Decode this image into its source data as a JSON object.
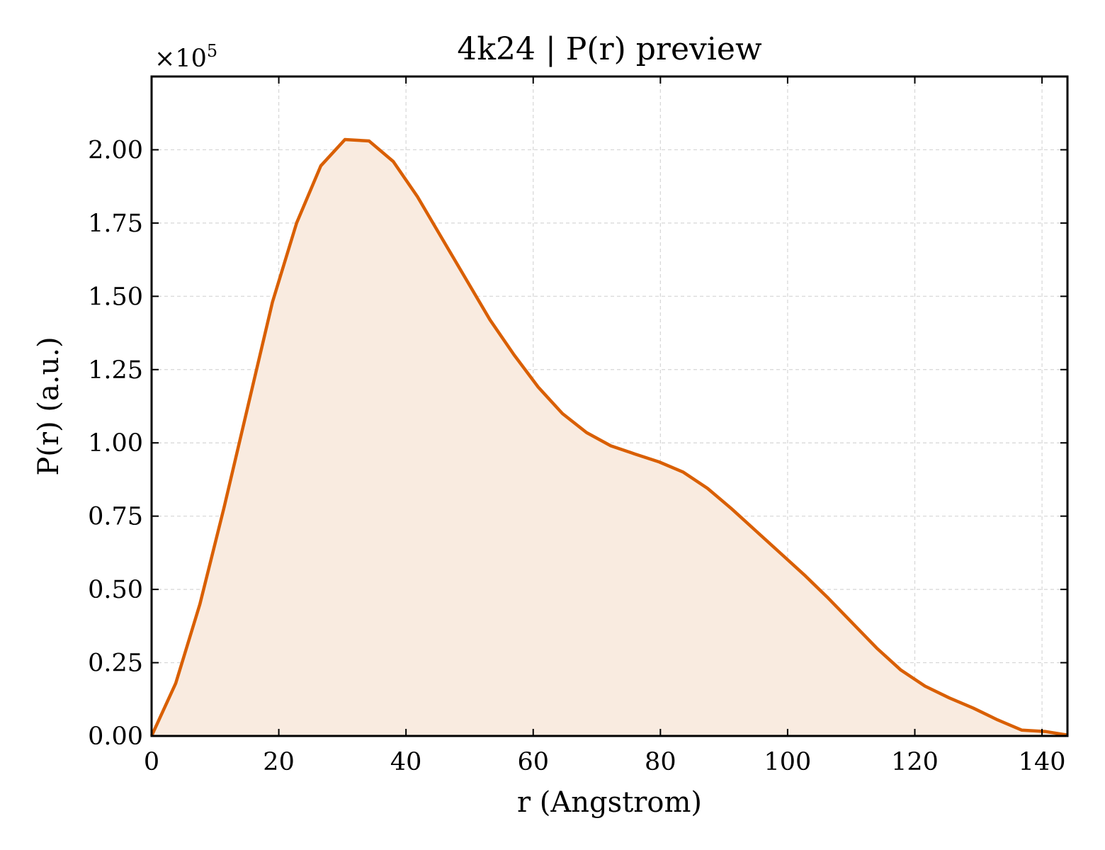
{
  "chart_data": {
    "type": "area",
    "title": "4k24 | P(r) preview",
    "xlabel": "r (Angstrom)",
    "ylabel": "P(r) (a.u.)",
    "y_offset_label": {
      "base": "×10",
      "exponent": "5"
    },
    "xlim": [
      0,
      144
    ],
    "ylim": [
      0,
      2.25
    ],
    "y_scale_factor": 100000,
    "grid": true,
    "x_ticks": [
      0,
      20,
      40,
      60,
      80,
      100,
      120,
      140
    ],
    "x_tick_labels": [
      "0",
      "20",
      "40",
      "60",
      "80",
      "100",
      "120",
      "140"
    ],
    "y_ticks": [
      0,
      0.25,
      0.5,
      0.75,
      1.0,
      1.25,
      1.5,
      1.75,
      2.0
    ],
    "y_tick_labels": [
      "0.00",
      "0.25",
      "0.50",
      "0.75",
      "1.00",
      "1.25",
      "1.50",
      "1.75",
      "2.00"
    ],
    "line_color": "#d95f02",
    "fill_color": "#f9ebe0",
    "series": [
      {
        "x": [
          0,
          3.8,
          7.6,
          11.4,
          15.2,
          19.0,
          22.8,
          26.6,
          30.4,
          34.2,
          38.0,
          41.8,
          45.6,
          49.4,
          53.2,
          57.0,
          60.8,
          64.6,
          68.4,
          72.2,
          76.0,
          79.8,
          83.6,
          87.4,
          91.2,
          95.0,
          98.8,
          102.6,
          106.4,
          110.2,
          114.0,
          117.8,
          121.6,
          125.4,
          129.2,
          133.0,
          136.8,
          140.6,
          144.0
        ],
        "y": [
          0.0,
          0.18,
          0.45,
          0.78,
          1.13,
          1.48,
          1.75,
          1.945,
          2.035,
          2.03,
          1.96,
          1.84,
          1.7,
          1.56,
          1.42,
          1.3,
          1.19,
          1.1,
          1.035,
          0.99,
          0.962,
          0.935,
          0.9,
          0.845,
          0.775,
          0.7,
          0.625,
          0.55,
          0.47,
          0.385,
          0.3,
          0.225,
          0.17,
          0.13,
          0.095,
          0.055,
          0.02,
          0.015,
          0.003
        ]
      }
    ]
  }
}
